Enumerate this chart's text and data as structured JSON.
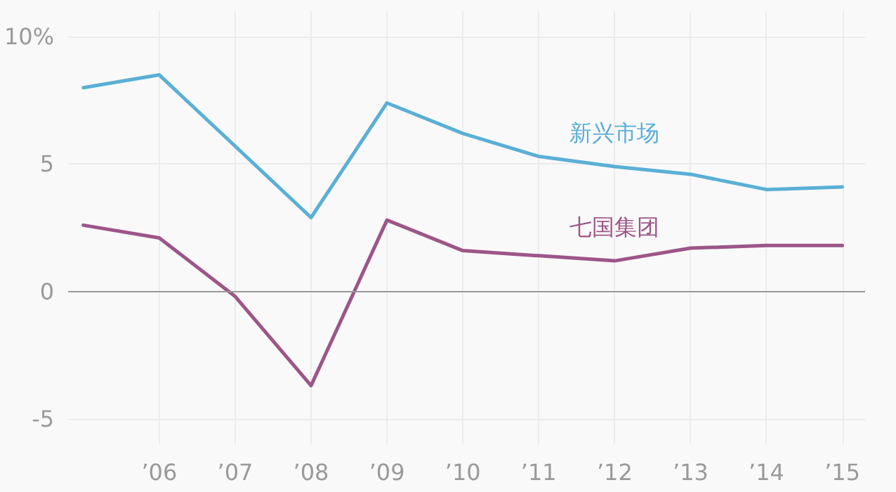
{
  "chart_data": {
    "type": "line",
    "x": [
      2005,
      2006,
      2007,
      2008,
      2009,
      2010,
      2011,
      2012,
      2013,
      2014,
      2015
    ],
    "series": [
      {
        "name": "新兴市场",
        "color": "#5aafd6",
        "values": [
          8.0,
          8.5,
          5.7,
          2.9,
          7.4,
          6.2,
          5.3,
          4.9,
          4.6,
          4.0,
          4.1
        ]
      },
      {
        "name": "七国集团",
        "color": "#9c5688",
        "values": [
          2.6,
          2.1,
          -0.2,
          -3.7,
          2.8,
          1.6,
          1.4,
          1.2,
          1.7,
          1.8,
          1.8
        ]
      }
    ],
    "xlim": [
      2004.8,
      2015.3
    ],
    "xticks": [
      {
        "value": 2006,
        "label": "’06"
      },
      {
        "value": 2007,
        "label": "’07"
      },
      {
        "value": 2008,
        "label": "’08"
      },
      {
        "value": 2009,
        "label": "’09"
      },
      {
        "value": 2010,
        "label": "’10"
      },
      {
        "value": 2011,
        "label": "’11"
      },
      {
        "value": 2012,
        "label": "’12"
      },
      {
        "value": 2013,
        "label": "’13"
      },
      {
        "value": 2014,
        "label": "’14"
      },
      {
        "value": 2015,
        "label": "’15"
      }
    ],
    "ylim": [
      -6,
      11
    ],
    "yticks": [
      {
        "value": 10,
        "label": "10%"
      },
      -5,
      0,
      5
    ],
    "ref_lines": [
      {
        "axis": "y",
        "value": 0,
        "color": "#999999"
      }
    ],
    "grid": true,
    "legend": false,
    "marker": "none",
    "line_style": "solid"
  }
}
